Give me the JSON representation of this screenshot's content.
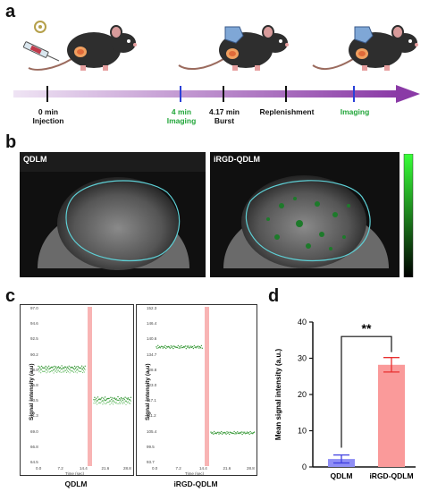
{
  "panels": {
    "a": "a",
    "b": "b",
    "c": "c",
    "d": "d"
  },
  "timeline": {
    "labels": [
      {
        "line1": "0 min",
        "line2": "Injection",
        "color": "#111111"
      },
      {
        "line1": "4 min",
        "line2": "Imaging",
        "color": "#22a63a"
      },
      {
        "line1": "4.17 min",
        "line2": "Burst",
        "color": "#111111"
      },
      {
        "line1": "Replenishment",
        "line2": "",
        "color": "#111111"
      },
      {
        "line1": "Imaging",
        "line2": "",
        "color": "#22a63a"
      }
    ]
  },
  "ultrasound": {
    "left_label": "QDLM",
    "right_label": "iRGD-QDLM"
  },
  "traces": {
    "ylabel": "Signal intensity (a.u)",
    "xlabel": "Time (sec)",
    "left": {
      "caption": "QDLM",
      "yticks": [
        "97.0",
        "94.6",
        "92.5",
        "90.2",
        "88.0",
        "75.8",
        "73.5",
        "71.3",
        "69.0",
        "66.8",
        "64.5"
      ],
      "xticks": [
        "0.0",
        "7.2",
        "14.4",
        "21.6",
        "28.8"
      ]
    },
    "right": {
      "caption": "iRGD-QDLM",
      "yticks": [
        "152.3",
        "146.4",
        "140.6",
        "134.7",
        "128.8",
        "123.0",
        "117.1",
        "111.2",
        "105.4",
        "99.5",
        "93.7"
      ],
      "xticks": [
        "0.0",
        "7.2",
        "14.4",
        "21.6",
        "28.8"
      ]
    }
  },
  "chart_data": {
    "type": "bar",
    "categories": [
      "QDLM",
      "iRGD-QDLM"
    ],
    "values": [
      2.2,
      28.2
    ],
    "errors": [
      1.1,
      2.0
    ],
    "ylabel": "Mean signal intensity (a.u.)",
    "ylim": [
      0,
      40
    ],
    "yticks": [
      0,
      10,
      20,
      30,
      40
    ],
    "colors": [
      "#8f8ef5",
      "#fa9a9a"
    ],
    "error_colors": [
      "#4040e0",
      "#e83030"
    ],
    "significance": "**"
  }
}
